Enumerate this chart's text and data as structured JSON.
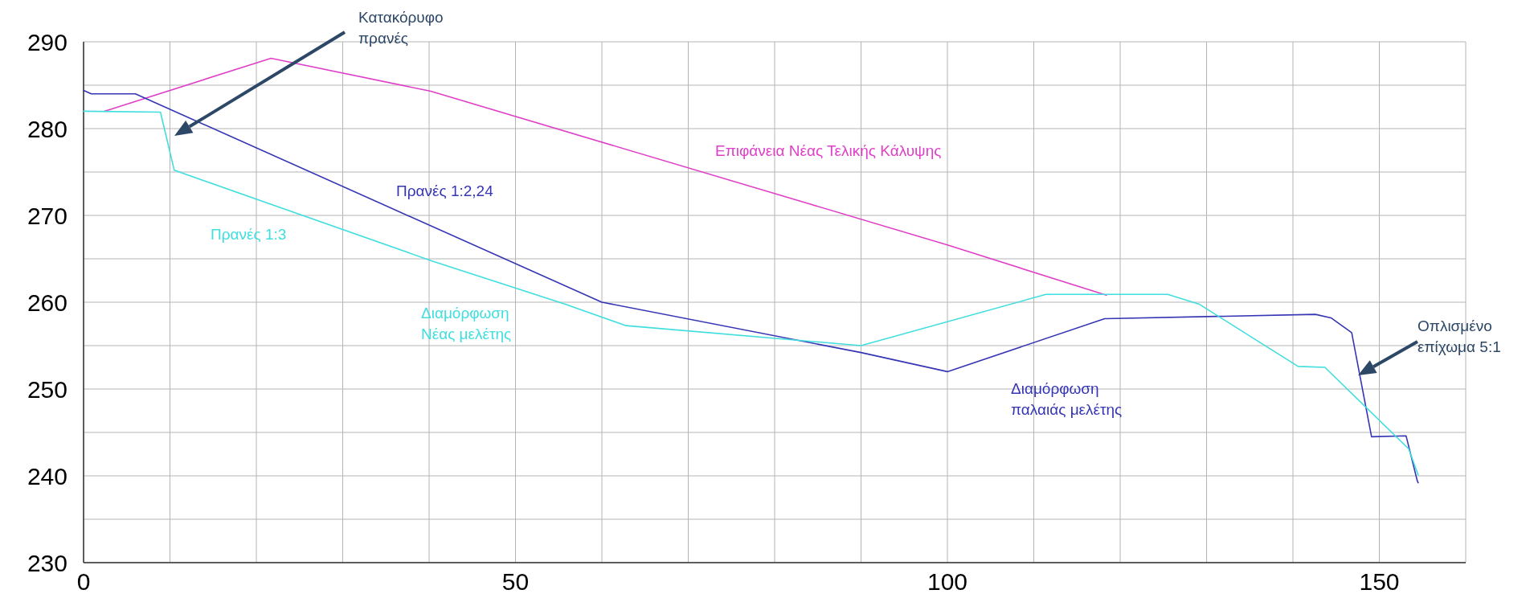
{
  "chart_data": {
    "type": "line",
    "xlim": [
      0,
      160
    ],
    "ylim": [
      230,
      290
    ],
    "xticks": [
      0,
      {
        "value": 10,
        "label": null
      },
      {
        "value": 20,
        "label": null
      },
      {
        "value": 30,
        "label": null
      },
      {
        "value": 40,
        "label": null
      },
      50,
      {
        "value": 60,
        "label": null
      },
      {
        "value": 70,
        "label": null
      },
      {
        "value": 80,
        "label": null
      },
      {
        "value": 90,
        "label": null
      },
      100,
      {
        "value": 110,
        "label": null
      },
      {
        "value": 120,
        "label": null
      },
      {
        "value": 130,
        "label": null
      },
      {
        "value": 140,
        "label": null
      },
      150,
      {
        "value": 160,
        "label": null
      }
    ],
    "yticks": [
      230,
      {
        "value": 235,
        "label": null
      },
      240,
      {
        "value": 245,
        "label": null
      },
      250,
      {
        "value": 255,
        "label": null
      },
      260,
      {
        "value": 265,
        "label": null
      },
      270,
      {
        "value": 275,
        "label": null
      },
      280,
      {
        "value": 285,
        "label": null
      },
      290
    ],
    "grid": true,
    "marker": "none",
    "line_style": "solid",
    "series": [
      {
        "name": "Επιφάνεια Νέας Τελικής Κάλυψης",
        "color": "#e040c8",
        "x": [
          2.4,
          21.7,
          40.2,
          100,
          118.4
        ],
        "values": [
          282.0,
          288.1,
          284.3,
          266.6,
          260.8
        ]
      },
      {
        "name": "Διαμόρφωση παλαιάς μελέτης",
        "color": "#3535b5",
        "x": [
          0,
          0.9,
          6,
          60,
          90,
          100,
          118.2,
          142.6,
          144.4,
          146.8,
          149.1,
          153.1,
          154.4,
          154.5
        ],
        "values": [
          284.4,
          284.0,
          284.0,
          260.0,
          254.2,
          252.0,
          258.1,
          258.6,
          258.2,
          256.5,
          244.5,
          244.6,
          239.4,
          239.2
        ]
      },
      {
        "name": "Διαμόρφωση Νέας μελέτης",
        "color": "#40dede",
        "x": [
          0,
          8.9,
          10.5,
          40.2,
          55.7,
          62.8,
          90,
          111.4,
          125.5,
          129.1,
          140.6,
          143.7,
          153.4,
          154.5
        ],
        "values": [
          282.0,
          281.9,
          275.2,
          264.8,
          259.8,
          257.3,
          255.0,
          260.9,
          260.9,
          259.8,
          252.6,
          252.5,
          243.1,
          240.1
        ]
      }
    ],
    "annotations": [
      "Πρανές 1:2,24",
      "Πρανές 1:3",
      "Κατακόρυφο πρανές",
      "Οπλισμένο επίχωμα 5:1"
    ]
  }
}
